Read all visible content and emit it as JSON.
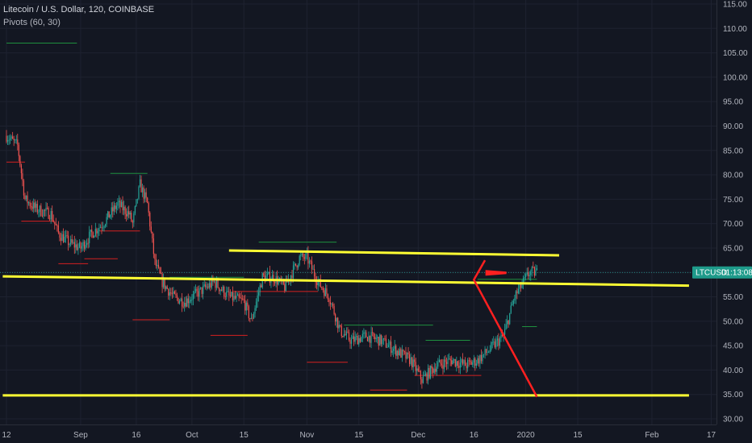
{
  "header": {
    "symbol_line": "Litecoin / U.S. Dollar, 120, COINBASE",
    "indicator_line": "Pivots (60, 30)"
  },
  "price_tag": {
    "symbol": "LTCUSD",
    "countdown": "01:13:08"
  },
  "colors": {
    "background": "#131722",
    "grid": "#1e2230",
    "up_candle": "#26a69a",
    "down_candle": "#ef5350",
    "pivot_high": "#1e8f3e",
    "pivot_low": "#d42020",
    "trendline": "#ffff33",
    "projection": "#ff2020",
    "price_tag_bg": "#1e9a8a"
  },
  "chart_data": {
    "type": "candlestick",
    "x_tick_labels": [
      "12",
      "Sep",
      "16",
      "Oct",
      "15",
      "Nov",
      "15",
      "Dec",
      "16",
      "2020",
      "15",
      "Feb",
      "17"
    ],
    "y_tick_labels": [
      "115.00",
      "110.00",
      "105.00",
      "100.00",
      "95.00",
      "90.00",
      "85.00",
      "80.00",
      "75.00",
      "70.00",
      "65.00",
      "60.00",
      "55.00",
      "50.00",
      "45.00",
      "40.00",
      "35.00",
      "30.00"
    ],
    "ylim": [
      29,
      116
    ],
    "x_axis": "day index from first visible bar (12 Aug 2019)",
    "price_path": [
      [
        0,
        88
      ],
      [
        3,
        86
      ],
      [
        5,
        75
      ],
      [
        8,
        73
      ],
      [
        12,
        72
      ],
      [
        14,
        68
      ],
      [
        17,
        66
      ],
      [
        20,
        65
      ],
      [
        23,
        68
      ],
      [
        26,
        70
      ],
      [
        30,
        74
      ],
      [
        33,
        72
      ],
      [
        34,
        70
      ],
      [
        36,
        78
      ],
      [
        38,
        74
      ],
      [
        40,
        62
      ],
      [
        42,
        58
      ],
      [
        45,
        55
      ],
      [
        48,
        54
      ],
      [
        52,
        56
      ],
      [
        56,
        58
      ],
      [
        60,
        55
      ],
      [
        64,
        54
      ],
      [
        66,
        50
      ],
      [
        69,
        59
      ],
      [
        72,
        59
      ],
      [
        75,
        57
      ],
      [
        79,
        63
      ],
      [
        81,
        63
      ],
      [
        84,
        58
      ],
      [
        87,
        55
      ],
      [
        90,
        48
      ],
      [
        93,
        46
      ],
      [
        97,
        47
      ],
      [
        101,
        46
      ],
      [
        105,
        44
      ],
      [
        109,
        42
      ],
      [
        112,
        38
      ],
      [
        116,
        41
      ],
      [
        120,
        42
      ],
      [
        124,
        41
      ],
      [
        127,
        42
      ],
      [
        130,
        44
      ],
      [
        134,
        47
      ],
      [
        137,
        55
      ],
      [
        141,
        60
      ],
      [
        143,
        60
      ]
    ],
    "pivot_highs": [
      {
        "from": 0,
        "to": 19,
        "value": 107
      },
      {
        "from": 28,
        "to": 38,
        "value": 80.3
      },
      {
        "from": 44,
        "to": 64,
        "value": 59
      },
      {
        "from": 68,
        "to": 89,
        "value": 66.2
      },
      {
        "from": 91,
        "to": 115,
        "value": 49.2
      },
      {
        "from": 113,
        "to": 125,
        "value": 46.1
      },
      {
        "from": 127,
        "to": 143,
        "value": 58.6
      },
      {
        "from": 139,
        "to": 143,
        "value": 48.9
      }
    ],
    "pivot_lows": [
      {
        "from": 0,
        "to": 5,
        "value": 82.6
      },
      {
        "from": 4,
        "to": 13,
        "value": 70.5
      },
      {
        "from": 14,
        "to": 22,
        "value": 61.8
      },
      {
        "from": 21,
        "to": 30,
        "value": 62.8
      },
      {
        "from": 25,
        "to": 36,
        "value": 68.5
      },
      {
        "from": 34,
        "to": 44,
        "value": 50.3
      },
      {
        "from": 55,
        "to": 65,
        "value": 47.1
      },
      {
        "from": 61,
        "to": 84,
        "value": 56.1
      },
      {
        "from": 81,
        "to": 92,
        "value": 41.6
      },
      {
        "from": 98,
        "to": 108,
        "value": 35.9
      },
      {
        "from": 110,
        "to": 128,
        "value": 38.9
      }
    ],
    "trendlines": [
      {
        "x1": 60,
        "y1": 64.5,
        "x2": 149,
        "y2": 63.5
      },
      {
        "x1": -1,
        "y1": 59.2,
        "x2": 184,
        "y2": 57.3
      },
      {
        "x1": -1,
        "y1": 34.8,
        "x2": 184,
        "y2": 34.8
      }
    ],
    "projection": [
      {
        "x": 129,
        "y": 62.5
      },
      {
        "x": 126,
        "y": 58.5
      },
      {
        "x": 143,
        "y": 34.5
      }
    ],
    "projection_marker": {
      "x": 130,
      "y": 60
    },
    "current_price": 60
  }
}
